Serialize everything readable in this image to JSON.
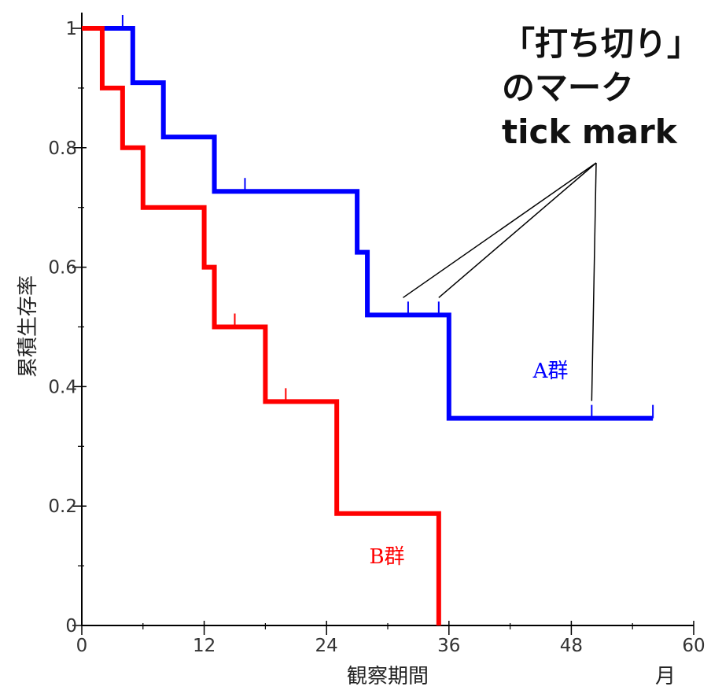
{
  "chart_data": {
    "type": "line",
    "step": true,
    "xlabel": "観察期間",
    "xunit": "月",
    "ylabel": "累積生存率",
    "xlim": [
      0,
      60
    ],
    "ylim": [
      0,
      1
    ],
    "x_ticks": [
      0,
      12,
      24,
      36,
      48,
      60
    ],
    "x_tick_labels": [
      "0",
      "12",
      "24",
      "36",
      "48",
      "60"
    ],
    "y_ticks": [
      0,
      0.2,
      0.4,
      0.6,
      0.8,
      1
    ],
    "y_tick_labels": [
      "0",
      "0.2",
      "0.4",
      "0.6",
      "0.8",
      "1"
    ],
    "grid": false,
    "series": [
      {
        "name": "A群",
        "color": "#0000ff",
        "points": [
          [
            0,
            1.0
          ],
          [
            5,
            0.909
          ],
          [
            8,
            0.818
          ],
          [
            13,
            0.727
          ],
          [
            27,
            0.625
          ],
          [
            28,
            0.52
          ],
          [
            36,
            0.347
          ],
          [
            56,
            0.347
          ]
        ],
        "censored": [
          [
            4,
            1.0
          ],
          [
            16,
            0.727
          ],
          [
            32,
            0.52
          ],
          [
            35,
            0.52
          ],
          [
            50,
            0.347
          ],
          [
            56,
            0.347
          ]
        ]
      },
      {
        "name": "B群",
        "color": "#ff0000",
        "points": [
          [
            0,
            1.0
          ],
          [
            2,
            0.9
          ],
          [
            4,
            0.8
          ],
          [
            6,
            0.7
          ],
          [
            12,
            0.6
          ],
          [
            13,
            0.5
          ],
          [
            18,
            0.375
          ],
          [
            25,
            0.1875
          ],
          [
            35,
            0.0
          ]
        ],
        "censored": [
          [
            15,
            0.5
          ],
          [
            20,
            0.375
          ]
        ]
      }
    ],
    "annotation": {
      "lines": [
        "「打ち切り」",
        "のマーク",
        "tick mark"
      ],
      "targets": [
        [
          31.5,
          0.52
        ],
        [
          35,
          0.52
        ],
        [
          50,
          0.347
        ]
      ]
    }
  }
}
